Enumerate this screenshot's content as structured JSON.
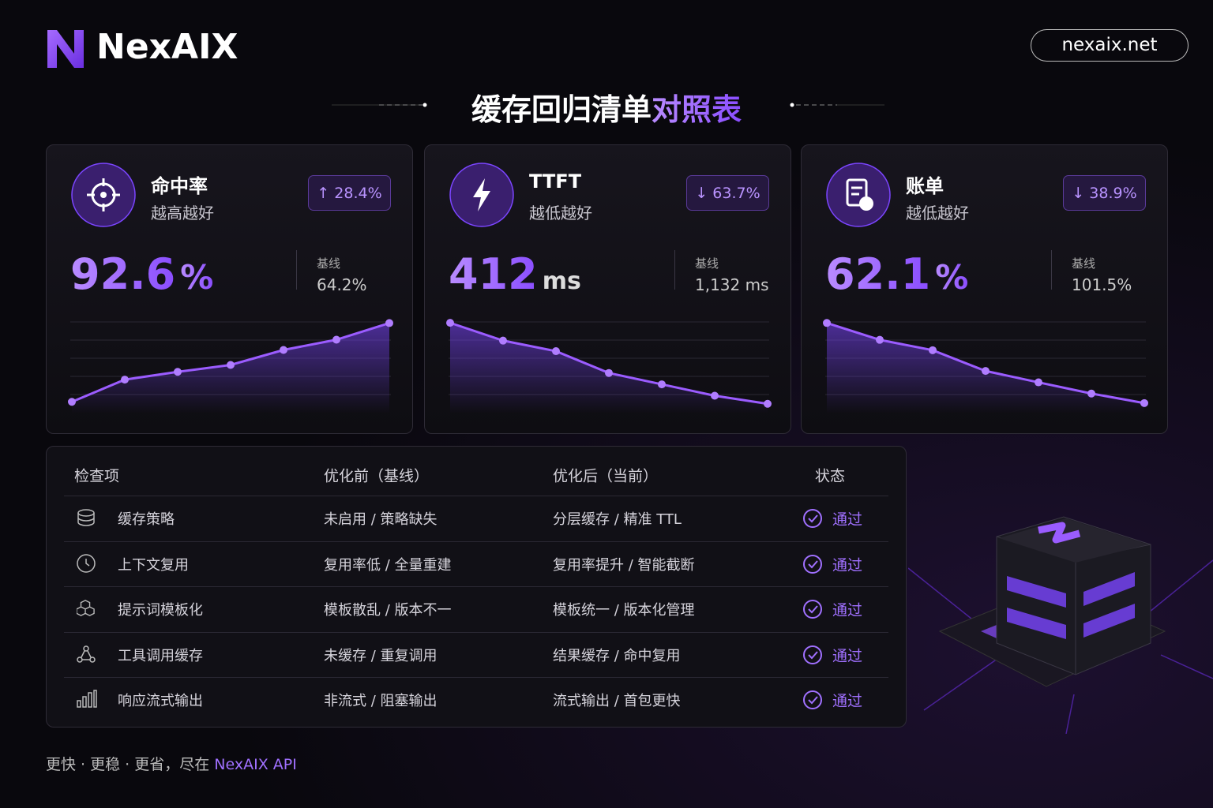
{
  "header": {
    "brand": "NexAIX",
    "url": "nexaix.net",
    "title": "缓存回归清单",
    "title_highlight": "对照表"
  },
  "cards": [
    {
      "label": "命中率",
      "subtitle": "越高越好",
      "change": "↑ 28.4%",
      "value": "92.6",
      "unit": "%",
      "baseline_label": "基线",
      "baseline": "64.2%",
      "sparkline": {
        "ylim": [
          60,
          93
        ],
        "values": [
          64.2,
          72.2,
          75.0,
          77.5,
          82.9,
          86.6,
          92.6
        ]
      }
    },
    {
      "label": "TTFT",
      "subtitle": "越低越好",
      "change": "↓ 63.7%",
      "value": "412",
      "unit": "ms",
      "baseline_label": "基线",
      "baseline": "1,132 ms",
      "sparkline": {
        "ylim": [
          326,
          1140
        ],
        "values": [
          1132,
          974,
          880,
          686,
          585,
          484,
          412
        ]
      }
    },
    {
      "label": "账单",
      "subtitle": "越低越好",
      "change": "↓ 38.9%",
      "value": "62.1",
      "unit": "%",
      "baseline_label": "基线",
      "baseline": "101.5%",
      "sparkline": {
        "ylim": [
          57,
          102
        ],
        "values": [
          101.5,
          93.2,
          88.1,
          77.9,
          72.3,
          66.8,
          62.1
        ]
      }
    }
  ],
  "table": {
    "headers": [
      "检查项",
      "优化前（基线）",
      "优化后（当前）",
      "状态"
    ],
    "rows": [
      [
        "缓存策略",
        "未启用 / 策略缺失",
        "分层缓存 / 精准 TTL",
        "通过"
      ],
      [
        "上下文复用",
        "复用率低 / 全量重建",
        "复用率提升 / 智能截断",
        "通过"
      ],
      [
        "提示词模板化",
        "模板散乱 / 版本不一",
        "模板统一 / 版本化管理",
        "通过"
      ],
      [
        "工具调用缓存",
        "未缓存 / 重复调用",
        "结果缓存 / 命中复用",
        "通过"
      ],
      [
        "响应流式输出",
        "非流式 / 阻塞输出",
        "流式输出 / 首包更快",
        "通过"
      ]
    ]
  },
  "footer": {
    "text": "更快 · 更稳 · 更省，尽在",
    "highlight": "NexAIX API"
  }
}
